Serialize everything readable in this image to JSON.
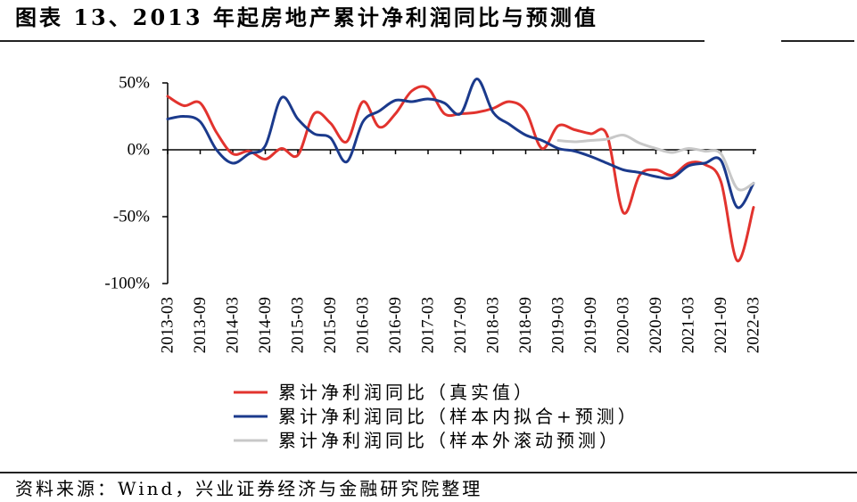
{
  "source": "资料来源：Wind，兴业证券经济与金融研究院整理",
  "chart_data": {
    "type": "line",
    "title": "图表 13、2013 年起房地产累计净利润同比与预测值",
    "x": [
      "2013-03",
      "2013-06",
      "2013-09",
      "2013-12",
      "2014-03",
      "2014-06",
      "2014-09",
      "2014-12",
      "2015-03",
      "2015-06",
      "2015-09",
      "2015-12",
      "2016-03",
      "2016-06",
      "2016-09",
      "2016-12",
      "2017-03",
      "2017-06",
      "2017-09",
      "2017-12",
      "2018-03",
      "2018-06",
      "2018-09",
      "2018-12",
      "2019-03",
      "2019-06",
      "2019-09",
      "2019-12",
      "2020-03",
      "2020-06",
      "2020-09",
      "2020-12",
      "2021-03",
      "2021-06",
      "2021-09",
      "2021-12",
      "2022-03"
    ],
    "x_tick_labels": [
      "2013-03",
      "2013-09",
      "2014-03",
      "2014-09",
      "2015-03",
      "2015-09",
      "2016-03",
      "2016-09",
      "2017-03",
      "2017-09",
      "2018-03",
      "2018-09",
      "2019-03",
      "2019-09",
      "2020-03",
      "2020-09",
      "2021-03",
      "2021-09",
      "2022-03"
    ],
    "y_ticks": [
      50,
      0,
      -50,
      -100
    ],
    "y_tick_labels": [
      "50%",
      "0%",
      "-50%",
      "-100%"
    ],
    "ylim": [
      -100,
      50
    ],
    "grid": false,
    "legend_position": "bottom",
    "series": [
      {
        "name": "累计净利润同比（真实值）",
        "color": "#E2332E",
        "values": [
          40,
          33,
          35,
          13,
          -3,
          -1,
          -7,
          1,
          -4,
          27,
          20,
          6,
          36,
          17,
          27,
          44,
          46,
          27,
          27,
          28,
          31,
          36,
          29,
          1,
          18,
          15,
          12,
          11,
          -47,
          -19,
          -15,
          -19,
          -10,
          -11,
          -24,
          -83,
          -43
        ]
      },
      {
        "name": "累计净利润同比（样本内拟合+预测）",
        "color": "#1B3A8C",
        "values": [
          23,
          25,
          21,
          0,
          -10,
          -3,
          3,
          39,
          23,
          12,
          9,
          -9,
          21,
          29,
          37,
          36,
          38,
          35,
          27,
          53,
          28,
          19,
          11,
          7,
          1,
          -1,
          -5,
          -10,
          -15,
          -17,
          -20,
          -21,
          -12,
          -10,
          -8,
          -43,
          -25
        ]
      },
      {
        "name": "累计净利润同比（样本外滚动预测）",
        "color": "#C8C8C8",
        "values": [
          null,
          null,
          null,
          null,
          null,
          null,
          null,
          null,
          null,
          null,
          null,
          null,
          null,
          null,
          null,
          null,
          null,
          null,
          null,
          null,
          null,
          null,
          null,
          null,
          7,
          6,
          7,
          8,
          11,
          5,
          1,
          -2,
          1,
          -1,
          -3,
          -29,
          -25
        ]
      }
    ]
  }
}
